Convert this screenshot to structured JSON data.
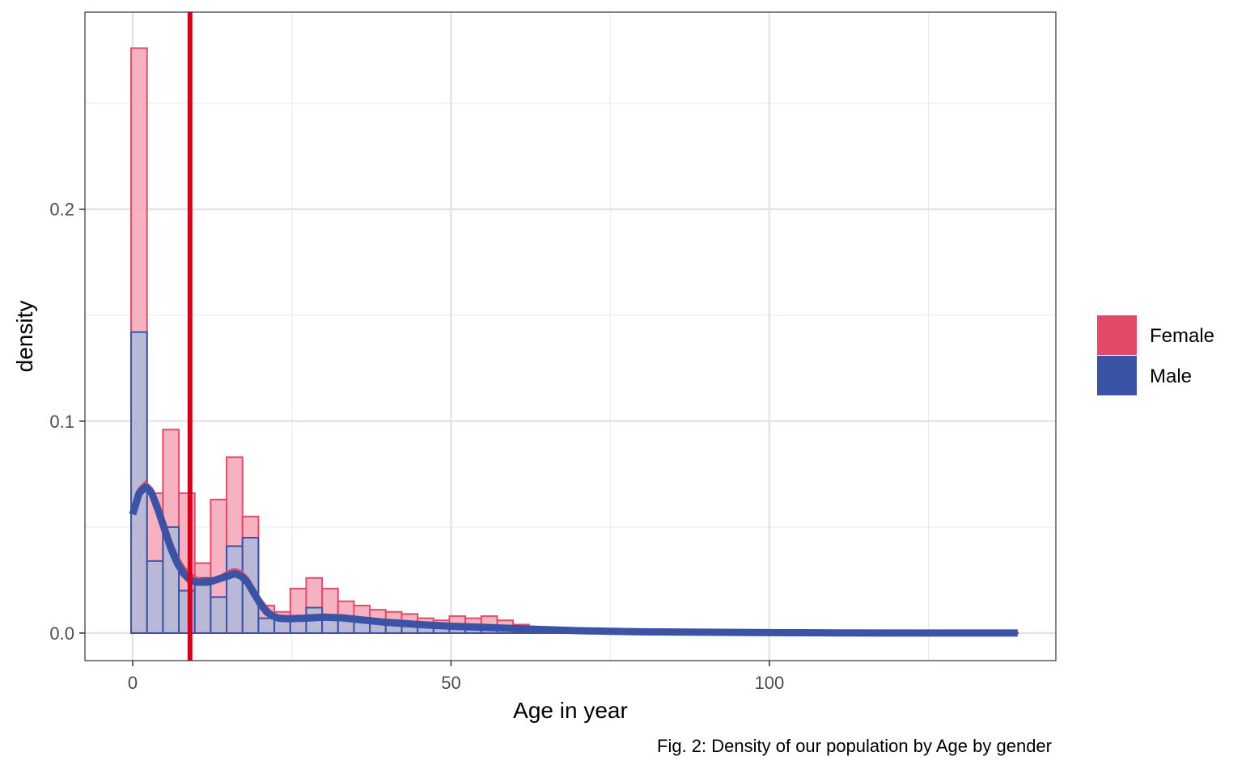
{
  "chart_data": {
    "type": "histogram",
    "xlabel": "Age in year",
    "ylabel": "density",
    "caption": "Fig. 2: Density of our population by Age by gender",
    "xlim": [
      -7.5,
      145
    ],
    "ylim": [
      -0.013,
      0.293
    ],
    "x_ticks": [
      0,
      50,
      100
    ],
    "y_ticks": [
      0.0,
      0.1,
      0.2
    ],
    "y_tick_labels": [
      "0.0",
      "0.1",
      "0.2"
    ],
    "x_tick_labels": [
      "0",
      "50",
      "100"
    ],
    "grid": true,
    "legend_position": "right",
    "bin_width": 2.5,
    "reference_line_x": 9.0,
    "reference_line_color": "#D6001C",
    "series": [
      {
        "name": "Female",
        "fill": "#F4A4B6",
        "stroke": "#E04C6C",
        "legend_color": "#E34A6A",
        "bins_start": [
          -0.25,
          2.25,
          4.75,
          7.25,
          9.75,
          12.25,
          14.75,
          17.25,
          19.75,
          22.25,
          24.75,
          27.25,
          29.75,
          32.25,
          34.75,
          37.25,
          39.75,
          42.25,
          44.75,
          47.25,
          49.75,
          52.25,
          54.75,
          57.25,
          59.75,
          62.25,
          64.75,
          67.25,
          69.75,
          72.25,
          74.75,
          77.25,
          79.75,
          82.25,
          84.75,
          87.25,
          89.75,
          92.25
        ],
        "bins_end": [
          2.25,
          4.75,
          7.25,
          9.75,
          12.25,
          14.75,
          17.25,
          19.75,
          22.25,
          24.75,
          27.25,
          29.75,
          32.25,
          34.75,
          37.25,
          39.75,
          42.25,
          44.75,
          47.25,
          49.75,
          52.25,
          54.75,
          57.25,
          59.75,
          62.25,
          64.75,
          67.25,
          69.75,
          72.25,
          74.75,
          77.25,
          79.75,
          82.25,
          84.75,
          87.25,
          89.75,
          92.25,
          139.0
        ],
        "values": [
          0.276,
          0.066,
          0.096,
          0.066,
          0.033,
          0.063,
          0.083,
          0.055,
          0.013,
          0.01,
          0.021,
          0.026,
          0.021,
          0.015,
          0.013,
          0.011,
          0.01,
          0.009,
          0.007,
          0.006,
          0.008,
          0.007,
          0.008,
          0.006,
          0.004,
          0.002,
          0.001,
          0.001,
          0.001,
          0.001,
          0.0005,
          0.0005,
          0.0005,
          0.0005,
          0.0005,
          0.001,
          0.0003,
          0.0002
        ]
      },
      {
        "name": "Male",
        "fill": "#AEB9DB",
        "stroke": "#3A53A4",
        "legend_color": "#3A53A4",
        "bins_start": [
          -0.25,
          2.25,
          4.75,
          7.25,
          9.75,
          12.25,
          14.75,
          17.25,
          19.75,
          22.25,
          24.75,
          27.25,
          29.75,
          32.25,
          34.75,
          37.25,
          39.75,
          42.25,
          44.75,
          47.25,
          49.75,
          52.25,
          54.75,
          57.25,
          59.75,
          62.25,
          64.75,
          67.25,
          69.75,
          72.25,
          74.75,
          77.25,
          79.75,
          82.25,
          84.75,
          87.25,
          89.75,
          92.25
        ],
        "bins_end": [
          2.25,
          4.75,
          7.25,
          9.75,
          12.25,
          14.75,
          17.25,
          19.75,
          22.25,
          24.75,
          27.25,
          29.75,
          32.25,
          34.75,
          37.25,
          39.75,
          42.25,
          44.75,
          47.25,
          49.75,
          52.25,
          54.75,
          57.25,
          59.75,
          62.25,
          64.75,
          67.25,
          69.75,
          72.25,
          74.75,
          77.25,
          79.75,
          82.25,
          84.75,
          87.25,
          89.75,
          92.25,
          139.0
        ],
        "values": [
          0.142,
          0.034,
          0.05,
          0.02,
          0.026,
          0.017,
          0.041,
          0.045,
          0.007,
          0.006,
          0.007,
          0.012,
          0.008,
          0.007,
          0.006,
          0.005,
          0.004,
          0.004,
          0.003,
          0.003,
          0.003,
          0.003,
          0.002,
          0.002,
          0.002,
          0.001,
          0.001,
          0.001,
          0.0005,
          0.0005,
          0.0003,
          0.0003,
          0.0003,
          0.0003,
          0.0003,
          0.0003,
          0.0002,
          0.0002
        ]
      }
    ],
    "density_curves": [
      {
        "name": "Female",
        "stroke": "#E04C6C",
        "x": [
          0,
          1,
          2,
          3,
          4,
          5,
          6,
          7,
          8,
          9,
          10,
          11,
          12,
          13,
          14,
          15,
          16,
          17,
          18,
          19,
          20,
          21,
          22,
          23,
          24,
          25,
          27,
          30,
          33,
          36,
          40,
          45,
          50,
          55,
          60,
          65,
          70,
          75,
          80,
          90,
          100,
          110,
          120,
          130,
          139
        ],
        "y": [
          0.058,
          0.068,
          0.071,
          0.068,
          0.061,
          0.052,
          0.043,
          0.036,
          0.031,
          0.028,
          0.026,
          0.025,
          0.025,
          0.026,
          0.027,
          0.029,
          0.03,
          0.029,
          0.026,
          0.021,
          0.016,
          0.012,
          0.009,
          0.008,
          0.0078,
          0.0078,
          0.008,
          0.0085,
          0.008,
          0.007,
          0.0055,
          0.0045,
          0.0035,
          0.003,
          0.0025,
          0.0018,
          0.0012,
          0.0008,
          0.0006,
          0.0004,
          0.0002,
          0.0001,
          0.0,
          0.0,
          0.0
        ]
      },
      {
        "name": "Male",
        "stroke": "#3A53A4",
        "x": [
          0,
          1,
          2,
          3,
          4,
          5,
          6,
          7,
          8,
          9,
          10,
          11,
          12,
          13,
          14,
          15,
          16,
          17,
          18,
          19,
          20,
          21,
          22,
          23,
          24,
          25,
          27,
          30,
          33,
          36,
          40,
          45,
          50,
          55,
          60,
          65,
          70,
          75,
          80,
          90,
          100,
          110,
          120,
          130,
          139
        ],
        "y": [
          0.056,
          0.066,
          0.069,
          0.066,
          0.058,
          0.049,
          0.04,
          0.033,
          0.028,
          0.025,
          0.024,
          0.024,
          0.024,
          0.025,
          0.026,
          0.027,
          0.028,
          0.027,
          0.024,
          0.019,
          0.014,
          0.01,
          0.008,
          0.007,
          0.0068,
          0.0068,
          0.007,
          0.0075,
          0.0072,
          0.0062,
          0.005,
          0.004,
          0.0032,
          0.0027,
          0.0022,
          0.0016,
          0.0011,
          0.0008,
          0.0006,
          0.0004,
          0.0002,
          0.0001,
          0.0,
          0.0,
          0.0
        ]
      }
    ]
  }
}
